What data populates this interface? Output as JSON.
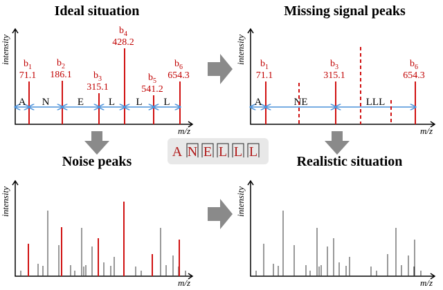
{
  "panels": [
    {
      "title": "Ideal situation",
      "y_label": "intensity",
      "x_label": "m/z",
      "peaks": [
        {
          "ion": "b",
          "index": "1",
          "mz": "71.1"
        },
        {
          "ion": "b",
          "index": "2",
          "mz": "186.1"
        },
        {
          "ion": "b",
          "index": "3",
          "mz": "315.1"
        },
        {
          "ion": "b",
          "index": "4",
          "mz": "428.2"
        },
        {
          "ion": "b",
          "index": "5",
          "mz": "541.2"
        },
        {
          "ion": "b",
          "index": "6",
          "mz": "654.3"
        }
      ],
      "segments": [
        "A",
        "N",
        "E",
        "L",
        "L",
        "L"
      ]
    },
    {
      "title": "Missing signal peaks",
      "y_label": "intensity",
      "x_label": "m/z",
      "peaks": [
        {
          "ion": "b",
          "index": "1",
          "mz": "71.1"
        },
        {
          "ion": "b",
          "index": "3",
          "mz": "315.1"
        },
        {
          "ion": "b",
          "index": "6",
          "mz": "654.3"
        }
      ],
      "segments": [
        "A",
        "NE",
        "LLL"
      ]
    },
    {
      "title": "Noise peaks",
      "y_label": "intensity",
      "x_label": "m/z"
    },
    {
      "title": "Realistic situation",
      "y_label": "intensity",
      "x_label": "m/z"
    }
  ],
  "sequence": [
    "A",
    "N",
    "E",
    "L",
    "L",
    "L"
  ]
}
